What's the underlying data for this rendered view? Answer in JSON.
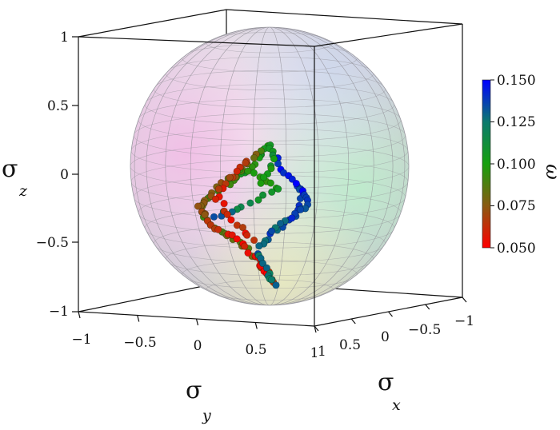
{
  "chart_data": {
    "type": "scatter",
    "projection": "3d",
    "sphere": "Bloch sphere (translucent, meridian/parallel grid)",
    "axes": {
      "x": {
        "label": "σ",
        "subscript": "x",
        "range": [
          -1,
          1
        ],
        "ticks": [
          "1",
          "0.5",
          "0",
          "−0.5",
          "−1"
        ]
      },
      "y": {
        "label": "σ",
        "subscript": "y",
        "range": [
          -1,
          1
        ],
        "ticks": [
          "−1",
          "−0.5",
          "0",
          "0.5",
          "1"
        ]
      },
      "z": {
        "label": "σ",
        "subscript": "z",
        "range": [
          -1,
          1
        ],
        "ticks": [
          "1",
          "0.5",
          "0",
          "−0.5",
          "−1"
        ]
      }
    },
    "colorbar": {
      "label": "ω",
      "range": [
        0.05,
        0.15
      ],
      "ticks": [
        "0.150",
        "0.125",
        "0.100",
        "0.075",
        "0.050"
      ],
      "colormap": [
        "#ff0000",
        "#8a5a12",
        "#16a00e",
        "#0c7a6e",
        "#0000ff"
      ]
    },
    "legend": "colorbar right",
    "grid": false,
    "trajectory_note": "trajectory points on sphere surface, colored by ω"
  }
}
